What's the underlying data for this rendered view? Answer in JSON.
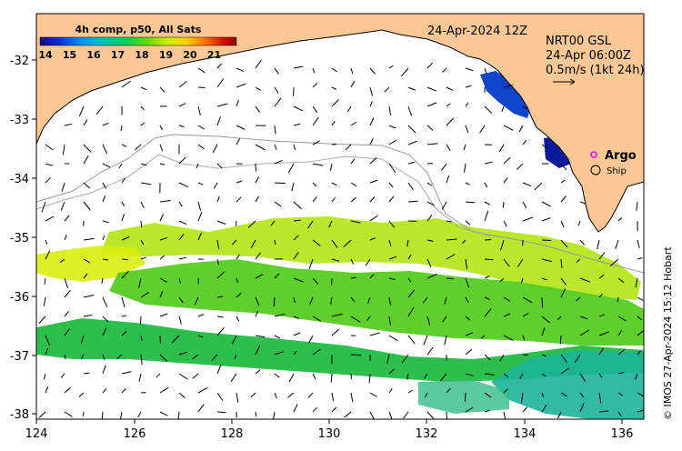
{
  "colorbar": {
    "title": "4h comp, p50, All Sats",
    "ticks": [
      "14",
      "15",
      "16",
      "17",
      "18",
      "19",
      "20",
      "21"
    ],
    "stops": [
      "#1a0a8c",
      "#0033cc",
      "#0088ee",
      "#00bbcc",
      "#00cc66",
      "#66dd00",
      "#ccee00",
      "#ffcc00",
      "#ff6600",
      "#cc0000",
      "#880000"
    ]
  },
  "date_label": "24-Apr-2024 12Z",
  "current_info": {
    "line1": "NRT00 GSL",
    "line2": "24-Apr 06:00Z",
    "line3": "0.5m/s (1kt 24h)"
  },
  "legend": {
    "argo": "Argo",
    "ship": "Ship"
  },
  "credit": "© IMOS 27-Apr-2024 15:12 Hobart",
  "x_ticks": [
    "124",
    "126",
    "128",
    "130",
    "132",
    "134",
    "136"
  ],
  "y_ticks": [
    "-32",
    "-33",
    "-34",
    "-35",
    "-36",
    "-37",
    "-38"
  ],
  "colors": {
    "land": "#fbc895",
    "ocean": "#ffffff",
    "argo": "#ee00ee",
    "arrows": "#000000"
  }
}
